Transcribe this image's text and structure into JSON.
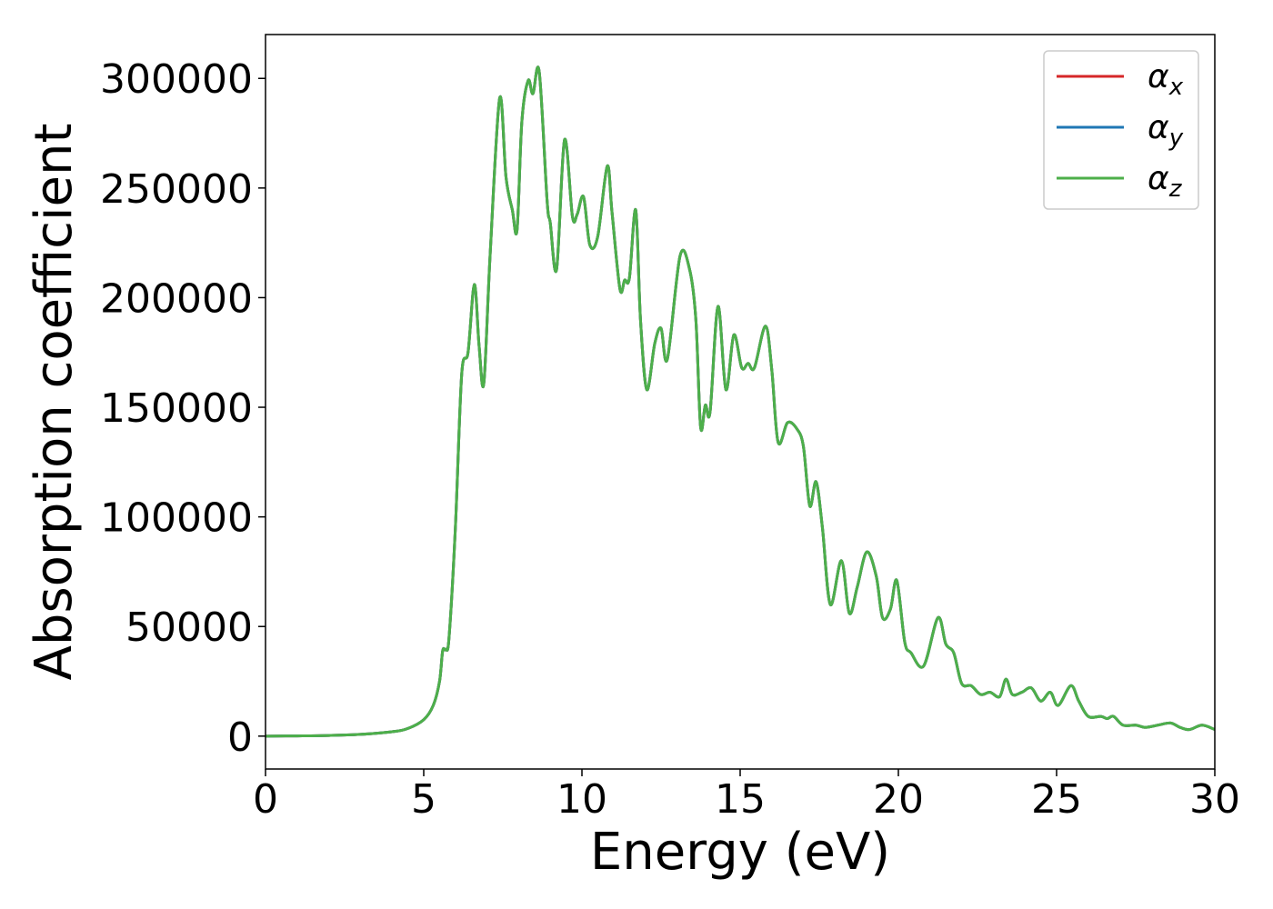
{
  "chart_data": {
    "type": "line",
    "title": "",
    "xlabel": "Energy (eV)",
    "ylabel": "Absorption coefficient",
    "xlim": [
      0,
      30
    ],
    "ylim": [
      -15000,
      320000
    ],
    "xticks": [
      0,
      5,
      10,
      15,
      20,
      25,
      30
    ],
    "xtick_labels": [
      "0",
      "5",
      "10",
      "15",
      "20",
      "25",
      "30"
    ],
    "yticks": [
      0,
      50000,
      100000,
      150000,
      200000,
      250000,
      300000
    ],
    "ytick_labels": [
      "0",
      "50000",
      "100000",
      "150000",
      "200000",
      "250000",
      "300000"
    ],
    "grid": false,
    "legend_position": "top-right",
    "series": [
      {
        "name": "α",
        "subscript": "x",
        "color": "#d62728",
        "x": [
          0,
          1,
          2,
          3,
          4,
          4.5,
          5,
          5.3,
          5.5,
          5.6,
          5.7,
          5.8,
          6.0,
          6.2,
          6.4,
          6.6,
          6.75,
          6.9,
          7.1,
          7.4,
          7.6,
          7.8,
          7.95,
          8.1,
          8.3,
          8.45,
          8.65,
          8.9,
          9.0,
          9.2,
          9.45,
          9.7,
          9.85,
          10.05,
          10.25,
          10.5,
          10.8,
          10.95,
          11.2,
          11.35,
          11.5,
          11.7,
          11.85,
          12.05,
          12.3,
          12.5,
          12.7,
          13.1,
          13.4,
          13.6,
          13.75,
          13.9,
          14.05,
          14.3,
          14.55,
          14.8,
          15.05,
          15.25,
          15.45,
          15.8,
          16.0,
          16.2,
          16.5,
          16.8,
          17.0,
          17.2,
          17.4,
          17.6,
          17.85,
          18.2,
          18.45,
          18.7,
          19.0,
          19.3,
          19.5,
          19.75,
          19.95,
          20.2,
          20.4,
          20.8,
          21.25,
          21.5,
          21.75,
          22.0,
          22.3,
          22.6,
          22.9,
          23.2,
          23.4,
          23.6,
          23.9,
          24.2,
          24.5,
          24.8,
          25.05,
          25.45,
          25.7,
          26.0,
          26.4,
          26.6,
          26.8,
          27.1,
          27.5,
          27.8,
          28.2,
          28.6,
          28.9,
          29.2,
          29.6,
          30.0
        ],
        "y": [
          0,
          100,
          300,
          800,
          2000,
          3500,
          7500,
          14000,
          25000,
          39000,
          39500,
          45000,
          95000,
          165000,
          175000,
          206000,
          178000,
          161000,
          220000,
          291000,
          255000,
          240000,
          231000,
          280000,
          299000,
          293000,
          303000,
          244000,
          234000,
          213000,
          272000,
          237000,
          238000,
          246000,
          224000,
          228000,
          260000,
          239000,
          204000,
          208000,
          209000,
          240000,
          190000,
          158000,
          179000,
          186000,
          172000,
          219000,
          213000,
          190000,
          141000,
          151000,
          148000,
          196000,
          158000,
          183000,
          168000,
          170000,
          168000,
          187000,
          167000,
          134000,
          143000,
          140000,
          132000,
          105000,
          116000,
          95000,
          60000,
          80000,
          56000,
          68000,
          84000,
          73000,
          54000,
          58000,
          71000,
          43000,
          38000,
          32000,
          54000,
          42000,
          38000,
          24000,
          23000,
          19000,
          20000,
          18000,
          26000,
          19000,
          20000,
          22000,
          16000,
          20000,
          14000,
          23000,
          16000,
          9000,
          9000,
          8000,
          9000,
          5000,
          5000,
          4000,
          5000,
          6000,
          4000,
          3000,
          5000,
          3000
        ]
      },
      {
        "name": "α",
        "subscript": "y",
        "color": "#1f77b4",
        "x": [
          0,
          1,
          2,
          3,
          4,
          4.5,
          5,
          5.3,
          5.5,
          5.6,
          5.7,
          5.8,
          6.0,
          6.2,
          6.4,
          6.6,
          6.75,
          6.9,
          7.1,
          7.4,
          7.6,
          7.8,
          7.95,
          8.1,
          8.3,
          8.45,
          8.65,
          8.9,
          9.0,
          9.2,
          9.45,
          9.7,
          9.85,
          10.05,
          10.25,
          10.5,
          10.8,
          10.95,
          11.2,
          11.35,
          11.5,
          11.7,
          11.85,
          12.05,
          12.3,
          12.5,
          12.7,
          13.1,
          13.4,
          13.6,
          13.75,
          13.9,
          14.05,
          14.3,
          14.55,
          14.8,
          15.05,
          15.25,
          15.45,
          15.8,
          16.0,
          16.2,
          16.5,
          16.8,
          17.0,
          17.2,
          17.4,
          17.6,
          17.85,
          18.2,
          18.45,
          18.7,
          19.0,
          19.3,
          19.5,
          19.75,
          19.95,
          20.2,
          20.4,
          20.8,
          21.25,
          21.5,
          21.75,
          22.0,
          22.3,
          22.6,
          22.9,
          23.2,
          23.4,
          23.6,
          23.9,
          24.2,
          24.5,
          24.8,
          25.05,
          25.45,
          25.7,
          26.0,
          26.4,
          26.6,
          26.8,
          27.1,
          27.5,
          27.8,
          28.2,
          28.6,
          28.9,
          29.2,
          29.6,
          30.0
        ],
        "y": [
          0,
          100,
          300,
          800,
          2000,
          3500,
          7500,
          14000,
          25000,
          39000,
          39500,
          45000,
          95000,
          165000,
          175000,
          206000,
          178000,
          161000,
          220000,
          291000,
          255000,
          240000,
          231000,
          280000,
          299000,
          293000,
          303000,
          244000,
          234000,
          213000,
          272000,
          237000,
          238000,
          246000,
          224000,
          228000,
          260000,
          239000,
          204000,
          208000,
          209000,
          240000,
          190000,
          158000,
          179000,
          186000,
          172000,
          219000,
          213000,
          190000,
          141000,
          151000,
          148000,
          196000,
          158000,
          183000,
          168000,
          170000,
          168000,
          187000,
          167000,
          134000,
          143000,
          140000,
          132000,
          105000,
          116000,
          95000,
          60000,
          80000,
          56000,
          68000,
          84000,
          73000,
          54000,
          58000,
          71000,
          43000,
          38000,
          32000,
          54000,
          42000,
          38000,
          24000,
          23000,
          19000,
          20000,
          18000,
          26000,
          19000,
          20000,
          22000,
          16000,
          20000,
          14000,
          23000,
          16000,
          9000,
          9000,
          8000,
          9000,
          5000,
          5000,
          4000,
          5000,
          6000,
          4000,
          3000,
          5000,
          3000
        ]
      },
      {
        "name": "α",
        "subscript": "z",
        "color": "#4daf4a",
        "x": [
          0,
          1,
          2,
          3,
          4,
          4.5,
          5,
          5.3,
          5.5,
          5.6,
          5.7,
          5.8,
          6.0,
          6.2,
          6.4,
          6.6,
          6.75,
          6.9,
          7.1,
          7.4,
          7.6,
          7.8,
          7.95,
          8.1,
          8.3,
          8.45,
          8.65,
          8.9,
          9.0,
          9.2,
          9.45,
          9.7,
          9.85,
          10.05,
          10.25,
          10.5,
          10.8,
          10.95,
          11.2,
          11.35,
          11.5,
          11.7,
          11.85,
          12.05,
          12.3,
          12.5,
          12.7,
          13.1,
          13.4,
          13.6,
          13.75,
          13.9,
          14.05,
          14.3,
          14.55,
          14.8,
          15.05,
          15.25,
          15.45,
          15.8,
          16.0,
          16.2,
          16.5,
          16.8,
          17.0,
          17.2,
          17.4,
          17.6,
          17.85,
          18.2,
          18.45,
          18.7,
          19.0,
          19.3,
          19.5,
          19.75,
          19.95,
          20.2,
          20.4,
          20.8,
          21.25,
          21.5,
          21.75,
          22.0,
          22.3,
          22.6,
          22.9,
          23.2,
          23.4,
          23.6,
          23.9,
          24.2,
          24.5,
          24.8,
          25.05,
          25.45,
          25.7,
          26.0,
          26.4,
          26.6,
          26.8,
          27.1,
          27.5,
          27.8,
          28.2,
          28.6,
          28.9,
          29.2,
          29.6,
          30.0
        ],
        "y": [
          0,
          100,
          300,
          800,
          2000,
          3500,
          7500,
          14000,
          25000,
          39000,
          39500,
          45000,
          95000,
          165000,
          175000,
          206000,
          178000,
          161000,
          220000,
          291000,
          255000,
          240000,
          231000,
          280000,
          299000,
          293000,
          303000,
          244000,
          234000,
          213000,
          272000,
          237000,
          238000,
          246000,
          224000,
          228000,
          260000,
          239000,
          204000,
          208000,
          209000,
          240000,
          190000,
          158000,
          179000,
          186000,
          172000,
          219000,
          213000,
          190000,
          141000,
          151000,
          148000,
          196000,
          158000,
          183000,
          168000,
          170000,
          168000,
          187000,
          167000,
          134000,
          143000,
          140000,
          132000,
          105000,
          116000,
          95000,
          60000,
          80000,
          56000,
          68000,
          84000,
          73000,
          54000,
          58000,
          71000,
          43000,
          38000,
          32000,
          54000,
          42000,
          38000,
          24000,
          23000,
          19000,
          20000,
          18000,
          26000,
          19000,
          20000,
          22000,
          16000,
          20000,
          14000,
          23000,
          16000,
          9000,
          9000,
          8000,
          9000,
          5000,
          5000,
          4000,
          5000,
          6000,
          4000,
          3000,
          5000,
          3000
        ]
      }
    ]
  }
}
